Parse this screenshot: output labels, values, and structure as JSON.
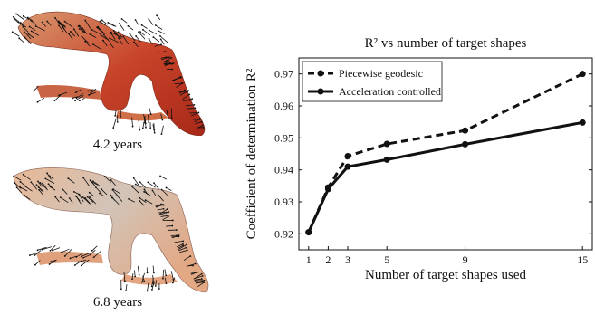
{
  "figure": {
    "shape_captions": [
      "4.2 years",
      "6.8 years"
    ]
  },
  "chart_data": {
    "type": "line",
    "title": "R² vs number of target shapes",
    "xlabel": "Number of target shapes used",
    "ylabel": "Coefficient of determination R²",
    "xlim": [
      0.5,
      15.5
    ],
    "ylim": [
      0.915,
      0.975
    ],
    "xticks": [
      1,
      2,
      3,
      5,
      9,
      15
    ],
    "yticks": [
      0.92,
      0.93,
      0.94,
      0.95,
      0.96,
      0.97
    ],
    "ytick_labels": [
      "0.92",
      "0.93",
      "0.94",
      "0.95",
      "0.96",
      "0.97"
    ],
    "legend_position": "top-left",
    "series": [
      {
        "name": "Piecewise geodesic",
        "style": "dashed",
        "color": "#111111",
        "x": [
          1,
          2,
          3,
          5,
          9,
          15
        ],
        "y": [
          0.9205,
          0.9345,
          0.9443,
          0.9481,
          0.9523,
          0.97
        ]
      },
      {
        "name": "Acceleration controlled",
        "style": "solid",
        "color": "#111111",
        "x": [
          1,
          2,
          3,
          5,
          9,
          15
        ],
        "y": [
          0.9205,
          0.934,
          0.941,
          0.9432,
          0.948,
          0.9548
        ]
      }
    ]
  }
}
